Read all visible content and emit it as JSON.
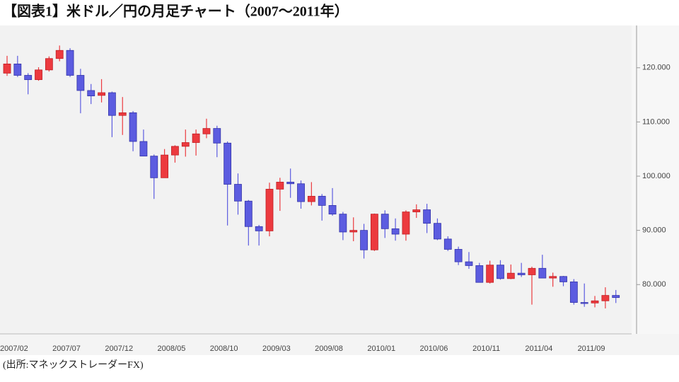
{
  "chart_data": {
    "type": "candlestick",
    "title": "【図表1】米ドル／円の月足チャート（2007～2011年）",
    "source": "(出所:マネックストレーダーFX)",
    "categories": [
      null,
      "2007/02",
      null,
      null,
      null,
      null,
      "2007/07",
      null,
      null,
      null,
      null,
      "2007/12",
      null,
      null,
      null,
      null,
      "2008/05",
      null,
      null,
      null,
      null,
      "2008/10",
      null,
      null,
      null,
      null,
      "2009/03",
      null,
      null,
      null,
      null,
      "2009/08",
      null,
      null,
      null,
      null,
      "2010/01",
      null,
      null,
      null,
      null,
      "2010/06",
      null,
      null,
      null,
      null,
      "2010/11",
      null,
      null,
      null,
      null,
      "2011/04",
      null,
      null,
      null,
      null,
      "2011/09",
      null,
      null
    ],
    "open": [
      119.0,
      120.7,
      118.6,
      117.8,
      119.6,
      121.7,
      123.2,
      118.6,
      115.8,
      114.9,
      115.4,
      111.2,
      111.7,
      106.4,
      103.7,
      99.7,
      103.9,
      105.5,
      106.2,
      107.8,
      108.8,
      106.1,
      98.5,
      95.4,
      90.7,
      89.9,
      97.6,
      98.9,
      98.6,
      95.3,
      96.3,
      94.6,
      93.0,
      89.7,
      90.0,
      86.4,
      93.0,
      90.3,
      89.3,
      93.4,
      93.8,
      91.3,
      88.4,
      86.5,
      84.2,
      83.5,
      80.4,
      83.6,
      81.1,
      82.1,
      81.8,
      83.0,
      81.2,
      81.5,
      80.5,
      76.7,
      76.6,
      77.0,
      78.0
    ],
    "high": [
      122.2,
      122.2,
      119.0,
      120.1,
      122.1,
      124.1,
      123.6,
      119.8,
      117.0,
      117.9,
      115.6,
      114.6,
      112.0,
      108.6,
      104.0,
      105.0,
      105.7,
      108.6,
      108.6,
      110.6,
      109.3,
      106.4,
      100.5,
      95.6,
      91.0,
      98.8,
      99.7,
      101.4,
      99.2,
      98.9,
      96.7,
      97.8,
      93.4,
      92.4,
      91.2,
      93.1,
      93.7,
      92.2,
      93.7,
      94.8,
      94.9,
      92.2,
      88.9,
      87.0,
      86.0,
      84.0,
      84.4,
      84.5,
      83.7,
      84.0,
      83.3,
      85.5,
      82.2,
      81.6,
      81.0,
      80.2,
      77.9,
      79.5,
      79.0
    ],
    "low": [
      118.5,
      118.3,
      115.1,
      117.6,
      119.3,
      121.2,
      118.3,
      111.6,
      113.3,
      113.6,
      107.2,
      107.6,
      104.6,
      103.7,
      95.8,
      99.7,
      102.5,
      103.6,
      103.8,
      107.0,
      103.5,
      90.9,
      92.9,
      87.2,
      87.2,
      88.9,
      93.6,
      96.0,
      94.0,
      94.6,
      91.8,
      92.7,
      88.2,
      88.0,
      84.8,
      86.2,
      88.6,
      88.1,
      88.1,
      92.3,
      89.5,
      88.2,
      86.2,
      83.6,
      82.9,
      80.4,
      80.2,
      80.9,
      81.0,
      81.4,
      76.3,
      81.3,
      79.6,
      79.7,
      76.3,
      75.9,
      75.8,
      75.6,
      76.6
    ],
    "close": [
      120.7,
      118.6,
      117.8,
      119.6,
      121.7,
      123.2,
      118.6,
      115.8,
      114.8,
      115.4,
      111.2,
      111.7,
      106.4,
      103.7,
      99.7,
      103.9,
      105.5,
      106.2,
      107.8,
      108.8,
      106.1,
      98.5,
      95.4,
      90.7,
      89.9,
      97.6,
      98.9,
      98.6,
      95.3,
      96.3,
      94.6,
      93.0,
      89.7,
      90.0,
      86.4,
      93.0,
      90.3,
      89.3,
      93.4,
      93.8,
      91.3,
      88.4,
      86.5,
      84.2,
      83.5,
      80.4,
      83.6,
      81.1,
      82.1,
      81.8,
      83.0,
      81.2,
      81.5,
      80.5,
      76.7,
      76.6,
      77.0,
      78.0,
      77.6
    ],
    "up_color": "#ec3a3f",
    "down_color": "#5c5ce0",
    "ylim": [
      70.9,
      127.8
    ],
    "yticks": [
      {
        "value": 80,
        "label": "80.000"
      },
      {
        "value": 90,
        "label": "90.000"
      },
      {
        "value": 100,
        "label": "100.000"
      },
      {
        "value": 110,
        "label": "110.000"
      },
      {
        "value": 120,
        "label": "120.000"
      }
    ]
  }
}
